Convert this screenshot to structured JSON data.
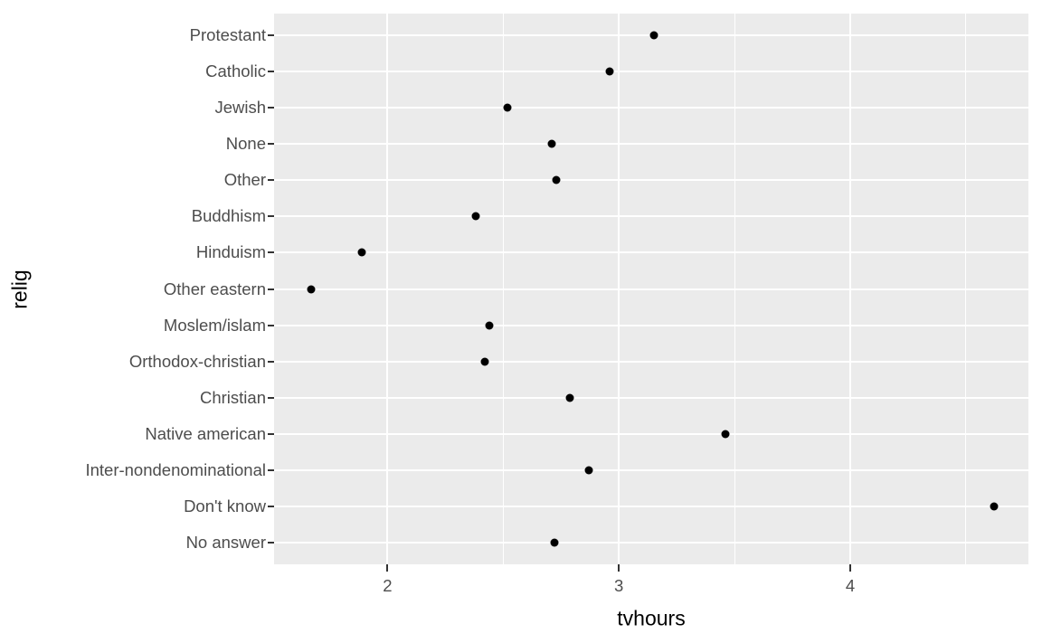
{
  "chart_data": {
    "type": "scatter",
    "title": "",
    "xlabel": "tvhours",
    "ylabel": "relig",
    "categories": [
      "Protestant",
      "Catholic",
      "Jewish",
      "None",
      "Other",
      "Buddhism",
      "Hinduism",
      "Other eastern",
      "Moslem/islam",
      "Orthodox-christian",
      "Christian",
      "Native american",
      "Inter-nondenominational",
      "Don't know",
      "No answer"
    ],
    "values": [
      3.15,
      2.96,
      2.52,
      2.71,
      2.73,
      2.38,
      1.89,
      1.67,
      2.44,
      2.42,
      2.79,
      3.46,
      2.87,
      4.62,
      2.72
    ],
    "xlim": [
      1.51,
      4.77
    ],
    "x_major_ticks": [
      2,
      3,
      4
    ],
    "x_major_tick_labels": [
      "2",
      "3",
      "4"
    ],
    "x_minor_ticks": [
      2.5,
      3.5,
      4.5
    ],
    "grid": "major-and-minor",
    "legend": "none",
    "style": {
      "panel_bg": "#EBEBEB",
      "grid_color": "#FFFFFF",
      "point_color": "#000000",
      "axis_text_color": "#4D4D4D",
      "axis_title_color": "#000000",
      "tick_mark_color": "#333333",
      "figure_bg": "#FFFFFF"
    }
  }
}
